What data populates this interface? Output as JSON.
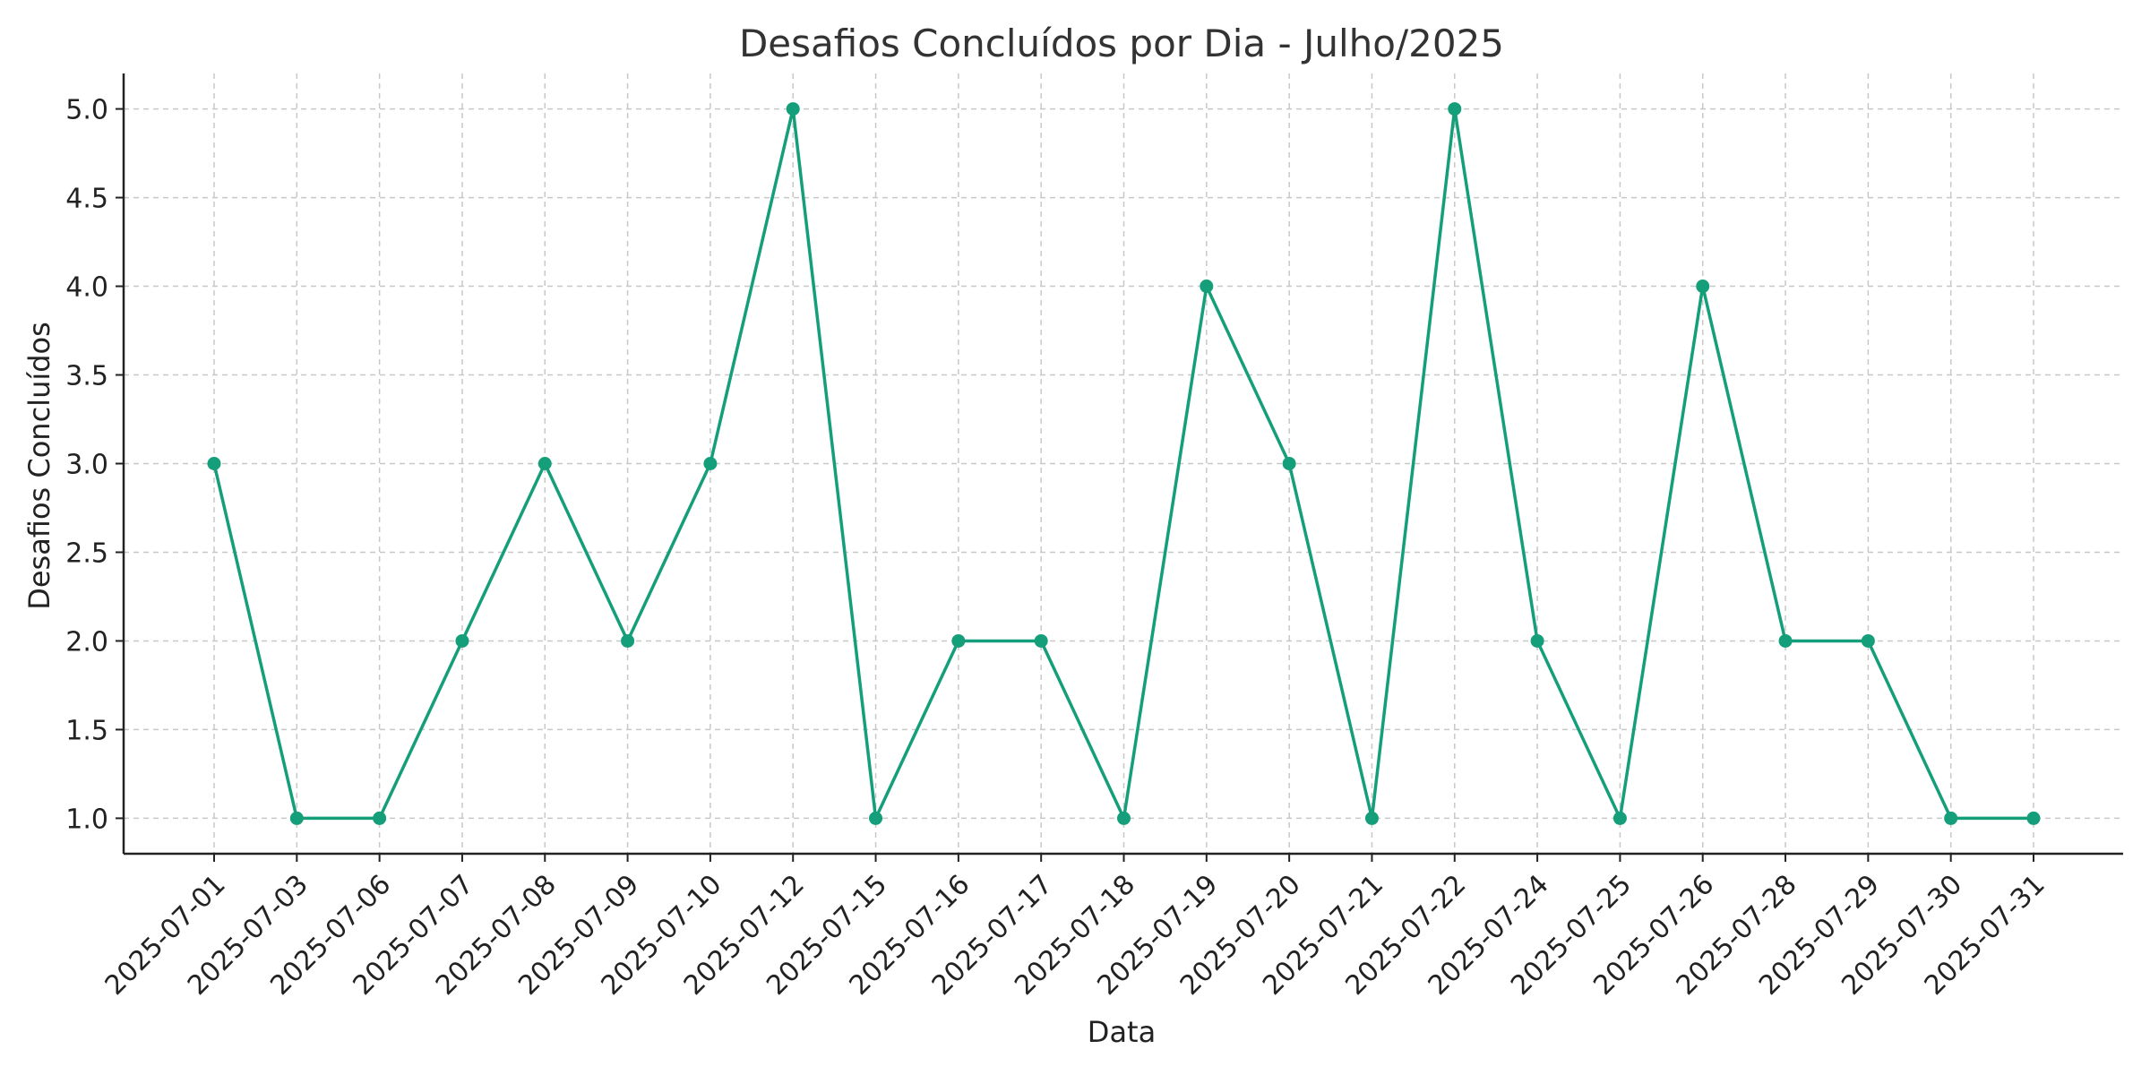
{
  "chart_data": {
    "type": "line",
    "title": "Desafios Concluídos por Dia - Julho/2025",
    "xlabel": "Data",
    "ylabel": "Desafios Concluídos",
    "categories": [
      "2025-07-01",
      "2025-07-03",
      "2025-07-06",
      "2025-07-07",
      "2025-07-08",
      "2025-07-09",
      "2025-07-10",
      "2025-07-12",
      "2025-07-15",
      "2025-07-16",
      "2025-07-17",
      "2025-07-18",
      "2025-07-19",
      "2025-07-20",
      "2025-07-21",
      "2025-07-22",
      "2025-07-24",
      "2025-07-25",
      "2025-07-26",
      "2025-07-28",
      "2025-07-29",
      "2025-07-30",
      "2025-07-31"
    ],
    "series": [
      {
        "values": [
          3,
          1,
          1,
          2,
          3,
          2,
          3,
          5,
          1,
          2,
          2,
          1,
          4,
          3,
          1,
          5,
          2,
          1,
          4,
          2,
          2,
          1,
          1
        ],
        "color": "#159e7a",
        "marker": "circle"
      }
    ],
    "yticks": [
      "1.0",
      "1.5",
      "2.0",
      "2.5",
      "3.0",
      "3.5",
      "4.0",
      "4.5",
      "5.0"
    ],
    "ylim": [
      0.8,
      5.2
    ],
    "grid": true,
    "legend": "none"
  }
}
